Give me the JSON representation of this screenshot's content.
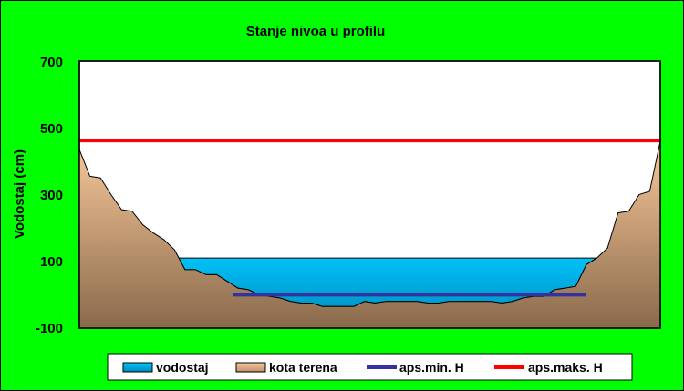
{
  "chart_data": {
    "type": "area",
    "title": "Stanje nivoa u profilu",
    "xlabel": "",
    "ylabel": "Vodostaj (cm)",
    "ylim": [
      -100,
      700
    ],
    "yticks": [
      "-100",
      "100",
      "300",
      "500",
      "700"
    ],
    "grid": false,
    "legend_position": "bottom",
    "colors": {
      "background": "#00ff00",
      "plot_background": "#ffffff",
      "water": "#00bfff",
      "terrain_top": "#f8c89a",
      "terrain_bottom": "#8a6a4c",
      "min_line": "#3333a0",
      "max_line": "#ff0000"
    },
    "terrain": {
      "name": "kota terena",
      "x": [
        0,
        2,
        4,
        6,
        8,
        10,
        12,
        14,
        16,
        18,
        20,
        22,
        24,
        26,
        28,
        30,
        32,
        34,
        36,
        38,
        40,
        42,
        44,
        46,
        48,
        50,
        52,
        54,
        56,
        58,
        60,
        62,
        64,
        66,
        68,
        70,
        72,
        74,
        76,
        78,
        80,
        82,
        84,
        86,
        88,
        90,
        92,
        94,
        96,
        98,
        100,
        102,
        104,
        106,
        108,
        110
      ],
      "y": [
        435,
        355,
        350,
        300,
        255,
        250,
        210,
        185,
        165,
        135,
        75,
        75,
        60,
        60,
        40,
        20,
        15,
        0,
        -5,
        -10,
        -20,
        -25,
        -25,
        -35,
        -35,
        -35,
        -35,
        -20,
        -25,
        -20,
        -20,
        -20,
        -20,
        -25,
        -25,
        -20,
        -20,
        -20,
        -20,
        -20,
        -25,
        -20,
        -10,
        -5,
        -5,
        15,
        20,
        25,
        90,
        110,
        140,
        245,
        250,
        300,
        310,
        460
      ]
    },
    "series": [
      {
        "name": "vodostaj",
        "level": 110,
        "x_start": 18,
        "x_end": 98
      },
      {
        "name": "aps.min. H",
        "value": 0,
        "x_start": 29,
        "x_end": 96
      },
      {
        "name": "aps.maks. H",
        "value": 462,
        "x_start": 0,
        "x_end": 110
      }
    ],
    "xlim": [
      0,
      110
    ]
  }
}
